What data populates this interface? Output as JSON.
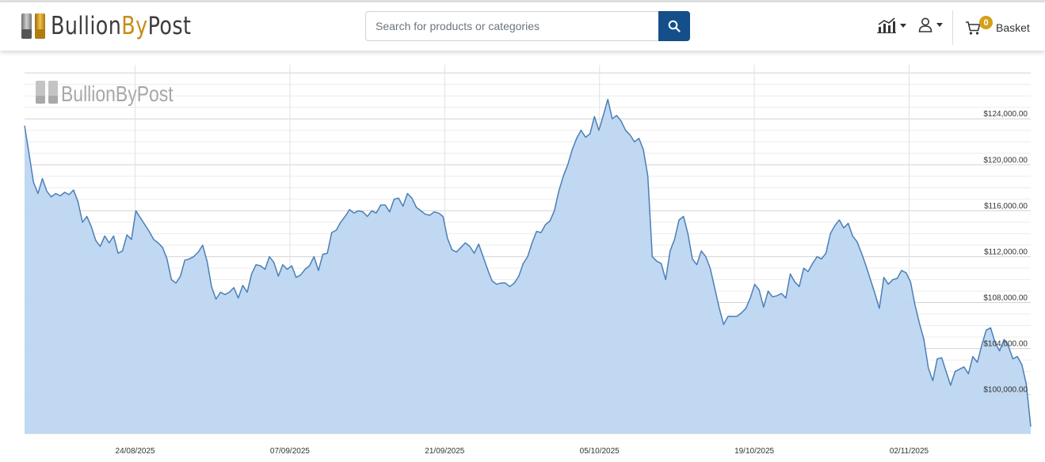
{
  "header": {
    "logo": {
      "part1": "Bullion",
      "part2": "By",
      "part3": "Post"
    },
    "search": {
      "placeholder": "Search for products or categories"
    },
    "basket": {
      "label": "Basket",
      "count": "0"
    },
    "colors": {
      "accent": "#144f8a",
      "gold": "#c68e17",
      "badge": "#d4a017"
    },
    "icons": [
      "search-icon",
      "chart-icon",
      "user-icon",
      "cart-icon"
    ]
  },
  "chart_data": {
    "type": "area",
    "watermark": {
      "part1": "Bullion",
      "part2": "By",
      "part3": "Post"
    },
    "x_ticks": [
      "24/08/2025",
      "07/09/2025",
      "21/09/2025",
      "05/10/2025",
      "19/10/2025",
      "02/11/2025"
    ],
    "y_ticks": [
      "$100,000.00",
      "$104,000.00",
      "$108,000.00",
      "$112,000.00",
      "$116,000.00",
      "$120,000.00",
      "$124,000.00"
    ],
    "y_tick_values": [
      100000,
      104000,
      108000,
      112000,
      116000,
      120000,
      124000
    ],
    "ylim": [
      96600,
      128700
    ],
    "x_range": [
      "2025-08-14",
      "2025-11-13"
    ],
    "grid": true,
    "line_color": "#4b7fb8",
    "fill_color": "#bdd6f0",
    "series": [
      {
        "values": [
          123400,
          121000,
          118500,
          117500,
          118800,
          117700,
          117200,
          117500,
          117300,
          117600,
          117400,
          117800,
          116800,
          115000,
          115500,
          114600,
          113400,
          112900,
          113800,
          113200,
          113800,
          112300,
          112500,
          113900,
          113500,
          116000,
          115400,
          114800,
          114200,
          113500,
          113200,
          112800,
          111800,
          110000,
          109700,
          110300,
          111700,
          111800,
          112000,
          112400,
          113000,
          111600,
          109400,
          108300,
          108900,
          108700,
          108900,
          109300,
          108400,
          109500,
          108900,
          110500,
          111300,
          111200,
          110900,
          112000,
          111500,
          110300,
          111300,
          110900,
          111200,
          110200,
          110400,
          110900,
          111200,
          112000,
          110800,
          112200,
          112300,
          114100,
          114300,
          115000,
          115500,
          116100,
          115800,
          116000,
          115900,
          115500,
          116000,
          115800,
          116500,
          116500,
          115900,
          117000,
          117100,
          116400,
          117500,
          117100,
          116300,
          116000,
          115700,
          115600,
          115900,
          115800,
          115500,
          113600,
          112600,
          112400,
          112800,
          113200,
          112900,
          112300,
          113100,
          112000,
          110900,
          109900,
          109600,
          109700,
          109700,
          109400,
          109700,
          110300,
          111400,
          112000,
          113200,
          114200,
          114100,
          114800,
          115100,
          116000,
          117700,
          119000,
          120000,
          121300,
          122300,
          123000,
          122400,
          122700,
          124200,
          123000,
          124300,
          125700,
          124000,
          124300,
          123800,
          123000,
          122600,
          122000,
          122300,
          121300,
          119000,
          112000,
          111600,
          111400,
          110000,
          112500,
          113500,
          115200,
          115500,
          114000,
          111800,
          111300,
          112500,
          112000,
          111000,
          109300,
          107600,
          106100,
          106800,
          106800,
          106800,
          107100,
          107500,
          108400,
          109600,
          109100,
          107600,
          109000,
          108500,
          108600,
          108800,
          108400,
          110500,
          109800,
          109400,
          111000,
          110700,
          111400,
          112000,
          111800,
          112300,
          114000,
          114700,
          115200,
          114500,
          114900,
          113800,
          113300,
          112300,
          111200,
          110000,
          108800,
          107500,
          110200,
          109600,
          110000,
          110100,
          110800,
          110600,
          109800,
          107800,
          106200,
          104800,
          102300,
          101200,
          103100,
          103200,
          102000,
          100800,
          102000,
          102200,
          102400,
          101800,
          103300,
          102800,
          104300,
          105600,
          105800,
          104500,
          103800,
          104800,
          104200,
          103100,
          103300,
          102600,
          100900,
          97200
        ]
      }
    ]
  }
}
